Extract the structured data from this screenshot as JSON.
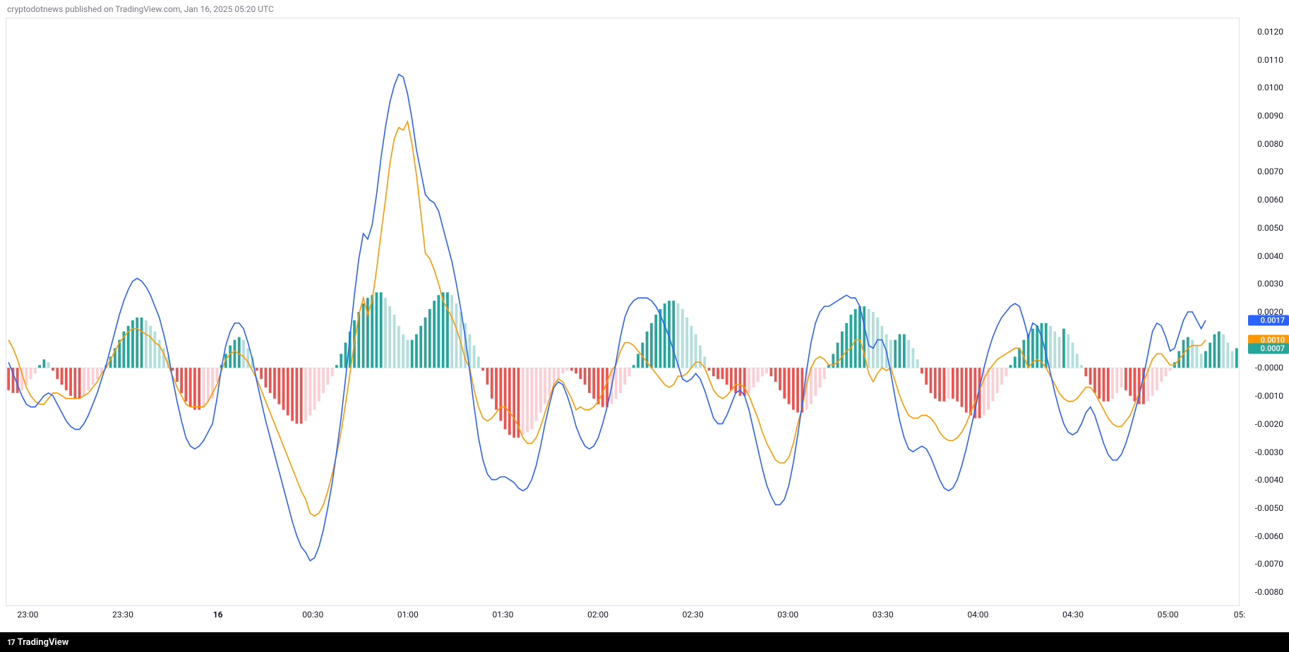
{
  "header": {
    "text": "cryptodotnews published on TradingView.com, Jan 16, 2025 05:20 UTC"
  },
  "footer": {
    "brand": "TradingView",
    "logo": "17"
  },
  "chart": {
    "type": "macd",
    "background_color": "#ffffff",
    "border_color": "#e0e3eb",
    "zero_line_color": "#9598a1",
    "ylim": [
      -0.0085,
      0.0125
    ],
    "y_ticks": [
      0.012,
      0.011,
      0.01,
      0.009,
      0.008,
      0.007,
      0.006,
      0.005,
      0.004,
      0.003,
      0.002,
      "-0.0000",
      -0.001,
      -0.002,
      -0.003,
      -0.004,
      -0.005,
      -0.006,
      -0.007,
      -0.008
    ],
    "x_ticks": [
      "23:00",
      "23:30",
      "16",
      "00:30",
      "01:00",
      "01:30",
      "02:00",
      "02:30",
      "03:00",
      "03:30",
      "04:00",
      "04:30",
      "05:00",
      "05:"
    ],
    "x_tick_positions": [
      0.018,
      0.095,
      0.172,
      0.249,
      0.326,
      0.403,
      0.48,
      0.557,
      0.634,
      0.711,
      0.788,
      0.865,
      0.942,
      1.0
    ],
    "macd_line_color": "#2962ff",
    "signal_line_color": "#ff9800",
    "histogram_colors": {
      "pos_grow": "#26a69a",
      "pos_fall": "#b2dfdb",
      "neg_grow": "#ffcdd2",
      "neg_fall": "#ef5350"
    },
    "current_values": {
      "macd": {
        "value": "0.0017",
        "bg": "#2962ff"
      },
      "signal": {
        "value": "0.0010",
        "bg": "#ff9800"
      },
      "hist": {
        "value": "0.0007",
        "bg": "#26a69a"
      }
    },
    "histogram": [
      -0.0008,
      -0.0009,
      -0.0009,
      -0.0008,
      -0.0006,
      -0.0004,
      -0.0002,
      0.0001,
      0.0003,
      0.0002,
      -0.0001,
      -0.0004,
      -0.0006,
      -0.0008,
      -0.001,
      -0.0011,
      -0.0011,
      -0.001,
      -0.0008,
      -0.0006,
      -0.0004,
      -0.0002,
      0.0001,
      0.0004,
      0.0007,
      0.001,
      0.0013,
      0.0015,
      0.0017,
      0.0018,
      0.0018,
      0.0017,
      0.0015,
      0.0013,
      0.001,
      0.0007,
      0.0004,
      -0.0001,
      -0.0005,
      -0.0009,
      -0.0012,
      -0.0014,
      -0.0015,
      -0.0015,
      -0.0014,
      -0.0012,
      -0.0011,
      -0.0005,
      0.0001,
      0.0005,
      0.0008,
      0.001,
      0.0011,
      0.001,
      0.0007,
      0.0004,
      -0.0001,
      -0.0004,
      -0.0007,
      -0.0009,
      -0.0011,
      -0.0013,
      -0.0015,
      -0.0017,
      -0.0019,
      -0.002,
      -0.002,
      -0.0019,
      -0.0017,
      -0.0015,
      -0.0012,
      -0.0009,
      -0.0006,
      -0.0003,
      0.0001,
      0.0005,
      0.0009,
      0.0013,
      0.0017,
      0.002,
      0.0023,
      0.0025,
      0.0026,
      0.0027,
      0.0027,
      0.0025,
      0.0022,
      0.0019,
      0.0015,
      0.0012,
      0.001,
      0.001,
      0.0012,
      0.0015,
      0.0018,
      0.0021,
      0.0024,
      0.0026,
      0.0027,
      0.0027,
      0.0026,
      0.0023,
      0.002,
      0.0016,
      0.0012,
      0.0008,
      0.0004,
      -0.0001,
      -0.0006,
      -0.0011,
      -0.0015,
      -0.0019,
      -0.0022,
      -0.0024,
      -0.0025,
      -0.0025,
      -0.0024,
      -0.0023,
      -0.0022,
      -0.0019,
      -0.0016,
      -0.0013,
      -0.001,
      -0.0007,
      -0.0004,
      -0.0002,
      -0.0001,
      -0.0001,
      -0.0002,
      -0.0004,
      -0.0006,
      -0.0009,
      -0.0011,
      -0.0013,
      -0.0014,
      -0.0014,
      -0.0013,
      -0.0011,
      -0.0009,
      -0.0006,
      -0.0003,
      0.0001,
      0.0005,
      0.0009,
      0.0013,
      0.0016,
      0.0019,
      0.0021,
      0.0023,
      0.0024,
      0.0024,
      0.0023,
      0.0021,
      0.0018,
      0.0015,
      0.0012,
      0.0008,
      0.0004,
      -0.0001,
      -0.0003,
      -0.0004,
      -0.0004,
      -0.0006,
      -0.0008,
      -0.0009,
      -0.001,
      -0.001,
      -0.0009,
      -0.0007,
      -0.0005,
      -0.0003,
      -0.0002,
      -0.0003,
      -0.0005,
      -0.0008,
      -0.0011,
      -0.0013,
      -0.0015,
      -0.0016,
      -0.0016,
      -0.0015,
      -0.0013,
      -0.001,
      -0.0007,
      -0.0004,
      0.0001,
      0.0005,
      0.0009,
      0.0013,
      0.0016,
      0.0019,
      0.0021,
      0.0022,
      0.0022,
      0.0021,
      0.002,
      0.0018,
      0.0015,
      0.0012,
      0.001,
      0.001,
      0.0012,
      0.0012,
      0.001,
      0.0007,
      0.0003,
      -0.0002,
      -0.0006,
      -0.0009,
      -0.0011,
      -0.0012,
      -0.0012,
      -0.0011,
      -0.0011,
      -0.0012,
      -0.0014,
      -0.0016,
      -0.0017,
      -0.0018,
      -0.0018,
      -0.0017,
      -0.0015,
      -0.0012,
      -0.0009,
      -0.0006,
      -0.0003,
      0.0001,
      0.0004,
      0.0007,
      0.001,
      0.0012,
      0.0014,
      0.0015,
      0.0016,
      0.0016,
      0.0015,
      0.0013,
      0.0011,
      0.0014,
      0.0012,
      0.0009,
      0.0005,
      0.0001,
      -0.0003,
      -0.0006,
      -0.0009,
      -0.0011,
      -0.0012,
      -0.0012,
      -0.0011,
      -0.0009,
      -0.0007,
      -0.0008,
      -0.001,
      -0.0012,
      -0.0013,
      -0.0013,
      -0.0012,
      -0.001,
      -0.0008,
      -0.0005,
      -0.0003,
      -0.0001,
      0.0002,
      0.0006,
      0.001,
      0.0011,
      0.001,
      0.0008,
      0.0005,
      0.0006,
      0.0009,
      0.0012,
      0.0013,
      0.0012,
      0.0009,
      0.0006,
      0.0007
    ],
    "macd_line": [
      0.0002,
      -0.0002,
      -0.0006,
      -0.001,
      -0.0013,
      -0.0014,
      -0.0014,
      -0.0012,
      -0.001,
      -0.0009,
      -0.001,
      -0.0013,
      -0.0016,
      -0.0019,
      -0.0021,
      -0.0022,
      -0.0022,
      -0.002,
      -0.0017,
      -0.0013,
      -0.0009,
      -0.0004,
      0.0001,
      0.0007,
      0.0013,
      0.0019,
      0.0024,
      0.0028,
      0.0031,
      0.0032,
      0.0031,
      0.0029,
      0.0026,
      0.0022,
      0.0018,
      0.0012,
      0.0005,
      -0.0004,
      -0.0012,
      -0.0019,
      -0.0025,
      -0.0028,
      -0.0029,
      -0.0028,
      -0.0026,
      -0.0023,
      -0.002,
      -0.0011,
      0.0,
      0.0008,
      0.0013,
      0.0016,
      0.0016,
      0.0014,
      0.0009,
      0.0003,
      -0.0005,
      -0.0012,
      -0.0019,
      -0.0025,
      -0.0031,
      -0.0037,
      -0.0043,
      -0.0049,
      -0.0055,
      -0.006,
      -0.0064,
      -0.0066,
      -0.0069,
      -0.0068,
      -0.0064,
      -0.0058,
      -0.005,
      -0.0041,
      -0.003,
      -0.0018,
      -0.0004,
      0.0011,
      0.0026,
      0.0039,
      0.0048,
      0.0046,
      0.0051,
      0.0062,
      0.0075,
      0.0086,
      0.0095,
      0.0101,
      0.0105,
      0.0104,
      0.0098,
      0.0089,
      0.0078,
      0.007,
      0.0062,
      0.006,
      0.0059,
      0.0056,
      0.005,
      0.0044,
      0.0038,
      0.003,
      0.0021,
      0.0011,
      -0.0001,
      -0.0014,
      -0.0025,
      -0.0033,
      -0.0038,
      -0.004,
      -0.004,
      -0.0039,
      -0.0039,
      -0.004,
      -0.0041,
      -0.0043,
      -0.0044,
      -0.0043,
      -0.004,
      -0.0035,
      -0.0028,
      -0.002,
      -0.0013,
      -0.0007,
      -0.0005,
      -0.0006,
      -0.001,
      -0.0015,
      -0.0021,
      -0.0025,
      -0.0028,
      -0.0029,
      -0.0028,
      -0.0025,
      -0.002,
      -0.0014,
      -0.0007,
      0.0002,
      0.0011,
      0.0018,
      0.0022,
      0.0024,
      0.0025,
      0.0025,
      0.0025,
      0.0024,
      0.0022,
      0.0019,
      0.0015,
      0.0011,
      0.0006,
      0.0001,
      -0.0004,
      -0.0005,
      -0.0004,
      -0.0002,
      -0.0004,
      -0.0008,
      -0.0013,
      -0.0018,
      -0.002,
      -0.002,
      -0.0017,
      -0.0013,
      -0.0009,
      -0.0008,
      -0.001,
      -0.0015,
      -0.0022,
      -0.0029,
      -0.0036,
      -0.0042,
      -0.0046,
      -0.0049,
      -0.0049,
      -0.0047,
      -0.0042,
      -0.0034,
      -0.0024,
      -0.0013,
      -0.0001,
      0.0009,
      0.0016,
      0.002,
      0.0022,
      0.0022,
      0.0023,
      0.0024,
      0.0025,
      0.0026,
      0.0025,
      0.0025,
      0.0022,
      0.0015,
      0.0008,
      0.0007,
      0.001,
      0.001,
      0.0006,
      -0.0002,
      -0.0011,
      -0.0019,
      -0.0025,
      -0.0029,
      -0.003,
      -0.0029,
      -0.0028,
      -0.0029,
      -0.0032,
      -0.0036,
      -0.004,
      -0.0043,
      -0.0044,
      -0.0043,
      -0.004,
      -0.0035,
      -0.0029,
      -0.0022,
      -0.0015,
      -0.0007,
      0.0,
      0.0006,
      0.0011,
      0.0015,
      0.0018,
      0.002,
      0.0022,
      0.0023,
      0.0022,
      0.0017,
      0.0011,
      0.0016,
      0.0015,
      0.0011,
      0.0005,
      -0.0002,
      -0.0009,
      -0.0015,
      -0.002,
      -0.0023,
      -0.0024,
      -0.0023,
      -0.002,
      -0.0016,
      -0.0014,
      -0.0017,
      -0.0022,
      -0.0027,
      -0.0031,
      -0.0033,
      -0.0033,
      -0.0031,
      -0.0027,
      -0.0022,
      -0.0016,
      -0.001,
      -0.0003,
      0.0005,
      0.0013,
      0.0016,
      0.0015,
      0.0011,
      0.0006,
      0.0007,
      0.0012,
      0.0017,
      0.002,
      0.002,
      0.0017,
      0.0014,
      0.0017
    ],
    "signal_line": [
      0.001,
      0.0007,
      0.0003,
      -0.0002,
      -0.0007,
      -0.001,
      -0.0012,
      -0.0013,
      -0.0013,
      -0.0011,
      -0.0009,
      -0.0009,
      -0.001,
      -0.0011,
      -0.0011,
      -0.0011,
      -0.0011,
      -0.001,
      -0.0009,
      -0.0007,
      -0.0005,
      -0.0002,
      0.0,
      0.0003,
      0.0006,
      0.0009,
      0.0011,
      0.0013,
      0.0014,
      0.0014,
      0.0013,
      0.0012,
      0.0011,
      0.0009,
      0.0008,
      0.0005,
      0.0001,
      -0.0003,
      -0.0007,
      -0.001,
      -0.0013,
      -0.0014,
      -0.0014,
      -0.0014,
      -0.0014,
      -0.0012,
      -0.0009,
      -0.0006,
      -0.0001,
      0.0003,
      0.0005,
      0.0006,
      0.0005,
      0.0004,
      0.0002,
      -0.0001,
      -0.0004,
      -0.0008,
      -0.0012,
      -0.0016,
      -0.002,
      -0.0024,
      -0.0028,
      -0.0032,
      -0.0036,
      -0.004,
      -0.0044,
      -0.0047,
      -0.0052,
      -0.0053,
      -0.0052,
      -0.0049,
      -0.0044,
      -0.0038,
      -0.0031,
      -0.0023,
      -0.0013,
      -0.0002,
      0.0009,
      0.0019,
      0.0025,
      0.0019,
      0.0024,
      0.0035,
      0.0048,
      0.006,
      0.0073,
      0.0082,
      0.0086,
      0.0085,
      0.0088,
      0.008,
      0.0069,
      0.0055,
      0.0041,
      0.0039,
      0.0035,
      0.003,
      0.0024,
      0.0021,
      0.0018,
      0.0014,
      0.0009,
      0.0003,
      0.0,
      -0.0008,
      -0.0014,
      -0.0018,
      -0.0019,
      -0.0018,
      -0.0016,
      -0.0014,
      -0.0014,
      -0.0016,
      -0.0018,
      -0.0021,
      -0.0025,
      -0.0027,
      -0.0027,
      -0.0025,
      -0.0021,
      -0.0016,
      -0.0011,
      -0.0006,
      -0.0004,
      -0.0005,
      -0.0008,
      -0.0011,
      -0.0015,
      -0.0014,
      -0.0015,
      -0.0015,
      -0.0014,
      -0.0012,
      -0.0009,
      -0.0005,
      -0.0001,
      0.0001,
      0.0006,
      0.0009,
      0.0009,
      0.0008,
      0.0006,
      0.0004,
      0.0002,
      0.0,
      -0.0002,
      -0.0004,
      -0.0006,
      -0.0007,
      -0.0006,
      -0.0003,
      -0.0003,
      -0.0002,
      0.0,
      0.0002,
      0.0002,
      0.0,
      -0.0004,
      -0.0008,
      -0.001,
      -0.0011,
      -0.001,
      -0.0008,
      -0.0006,
      -0.0006,
      -0.0007,
      -0.001,
      -0.0014,
      -0.0018,
      -0.0023,
      -0.0027,
      -0.003,
      -0.0033,
      -0.0034,
      -0.0034,
      -0.0032,
      -0.0027,
      -0.002,
      -0.0014,
      -0.0006,
      0.0,
      0.0003,
      0.0004,
      0.0003,
      0.0001,
      0.0001,
      0.0002,
      0.0004,
      0.0006,
      0.0007,
      0.001,
      0.001,
      0.0005,
      -0.0002,
      -0.0005,
      -0.0002,
      0.0,
      -0.0001,
      0.0,
      -0.0005,
      -0.001,
      -0.0014,
      -0.0017,
      -0.0018,
      -0.0018,
      -0.0017,
      -0.0017,
      -0.0018,
      -0.002,
      -0.0023,
      -0.0025,
      -0.0026,
      -0.0026,
      -0.0025,
      -0.0023,
      -0.002,
      -0.0016,
      -0.0012,
      -0.0008,
      -0.0004,
      -0.0001,
      0.0001,
      0.0003,
      0.0004,
      0.0005,
      0.0006,
      0.0007,
      0.0007,
      0.0004,
      0.0,
      0.0002,
      0.0003,
      0.0002,
      0.0,
      -0.0003,
      -0.0006,
      -0.0009,
      -0.0011,
      -0.0012,
      -0.0012,
      -0.0011,
      -0.0009,
      -0.0007,
      -0.0007,
      -0.0009,
      -0.0012,
      -0.0015,
      -0.0018,
      -0.002,
      -0.0021,
      -0.0021,
      -0.0019,
      -0.0017,
      -0.0013,
      -0.0009,
      -0.0005,
      -0.0001,
      0.0003,
      0.0005,
      0.0005,
      0.0003,
      0.0001,
      0.0001,
      0.0003,
      0.0005,
      0.0007,
      0.0008,
      0.0008,
      0.0008,
      0.001
    ]
  }
}
